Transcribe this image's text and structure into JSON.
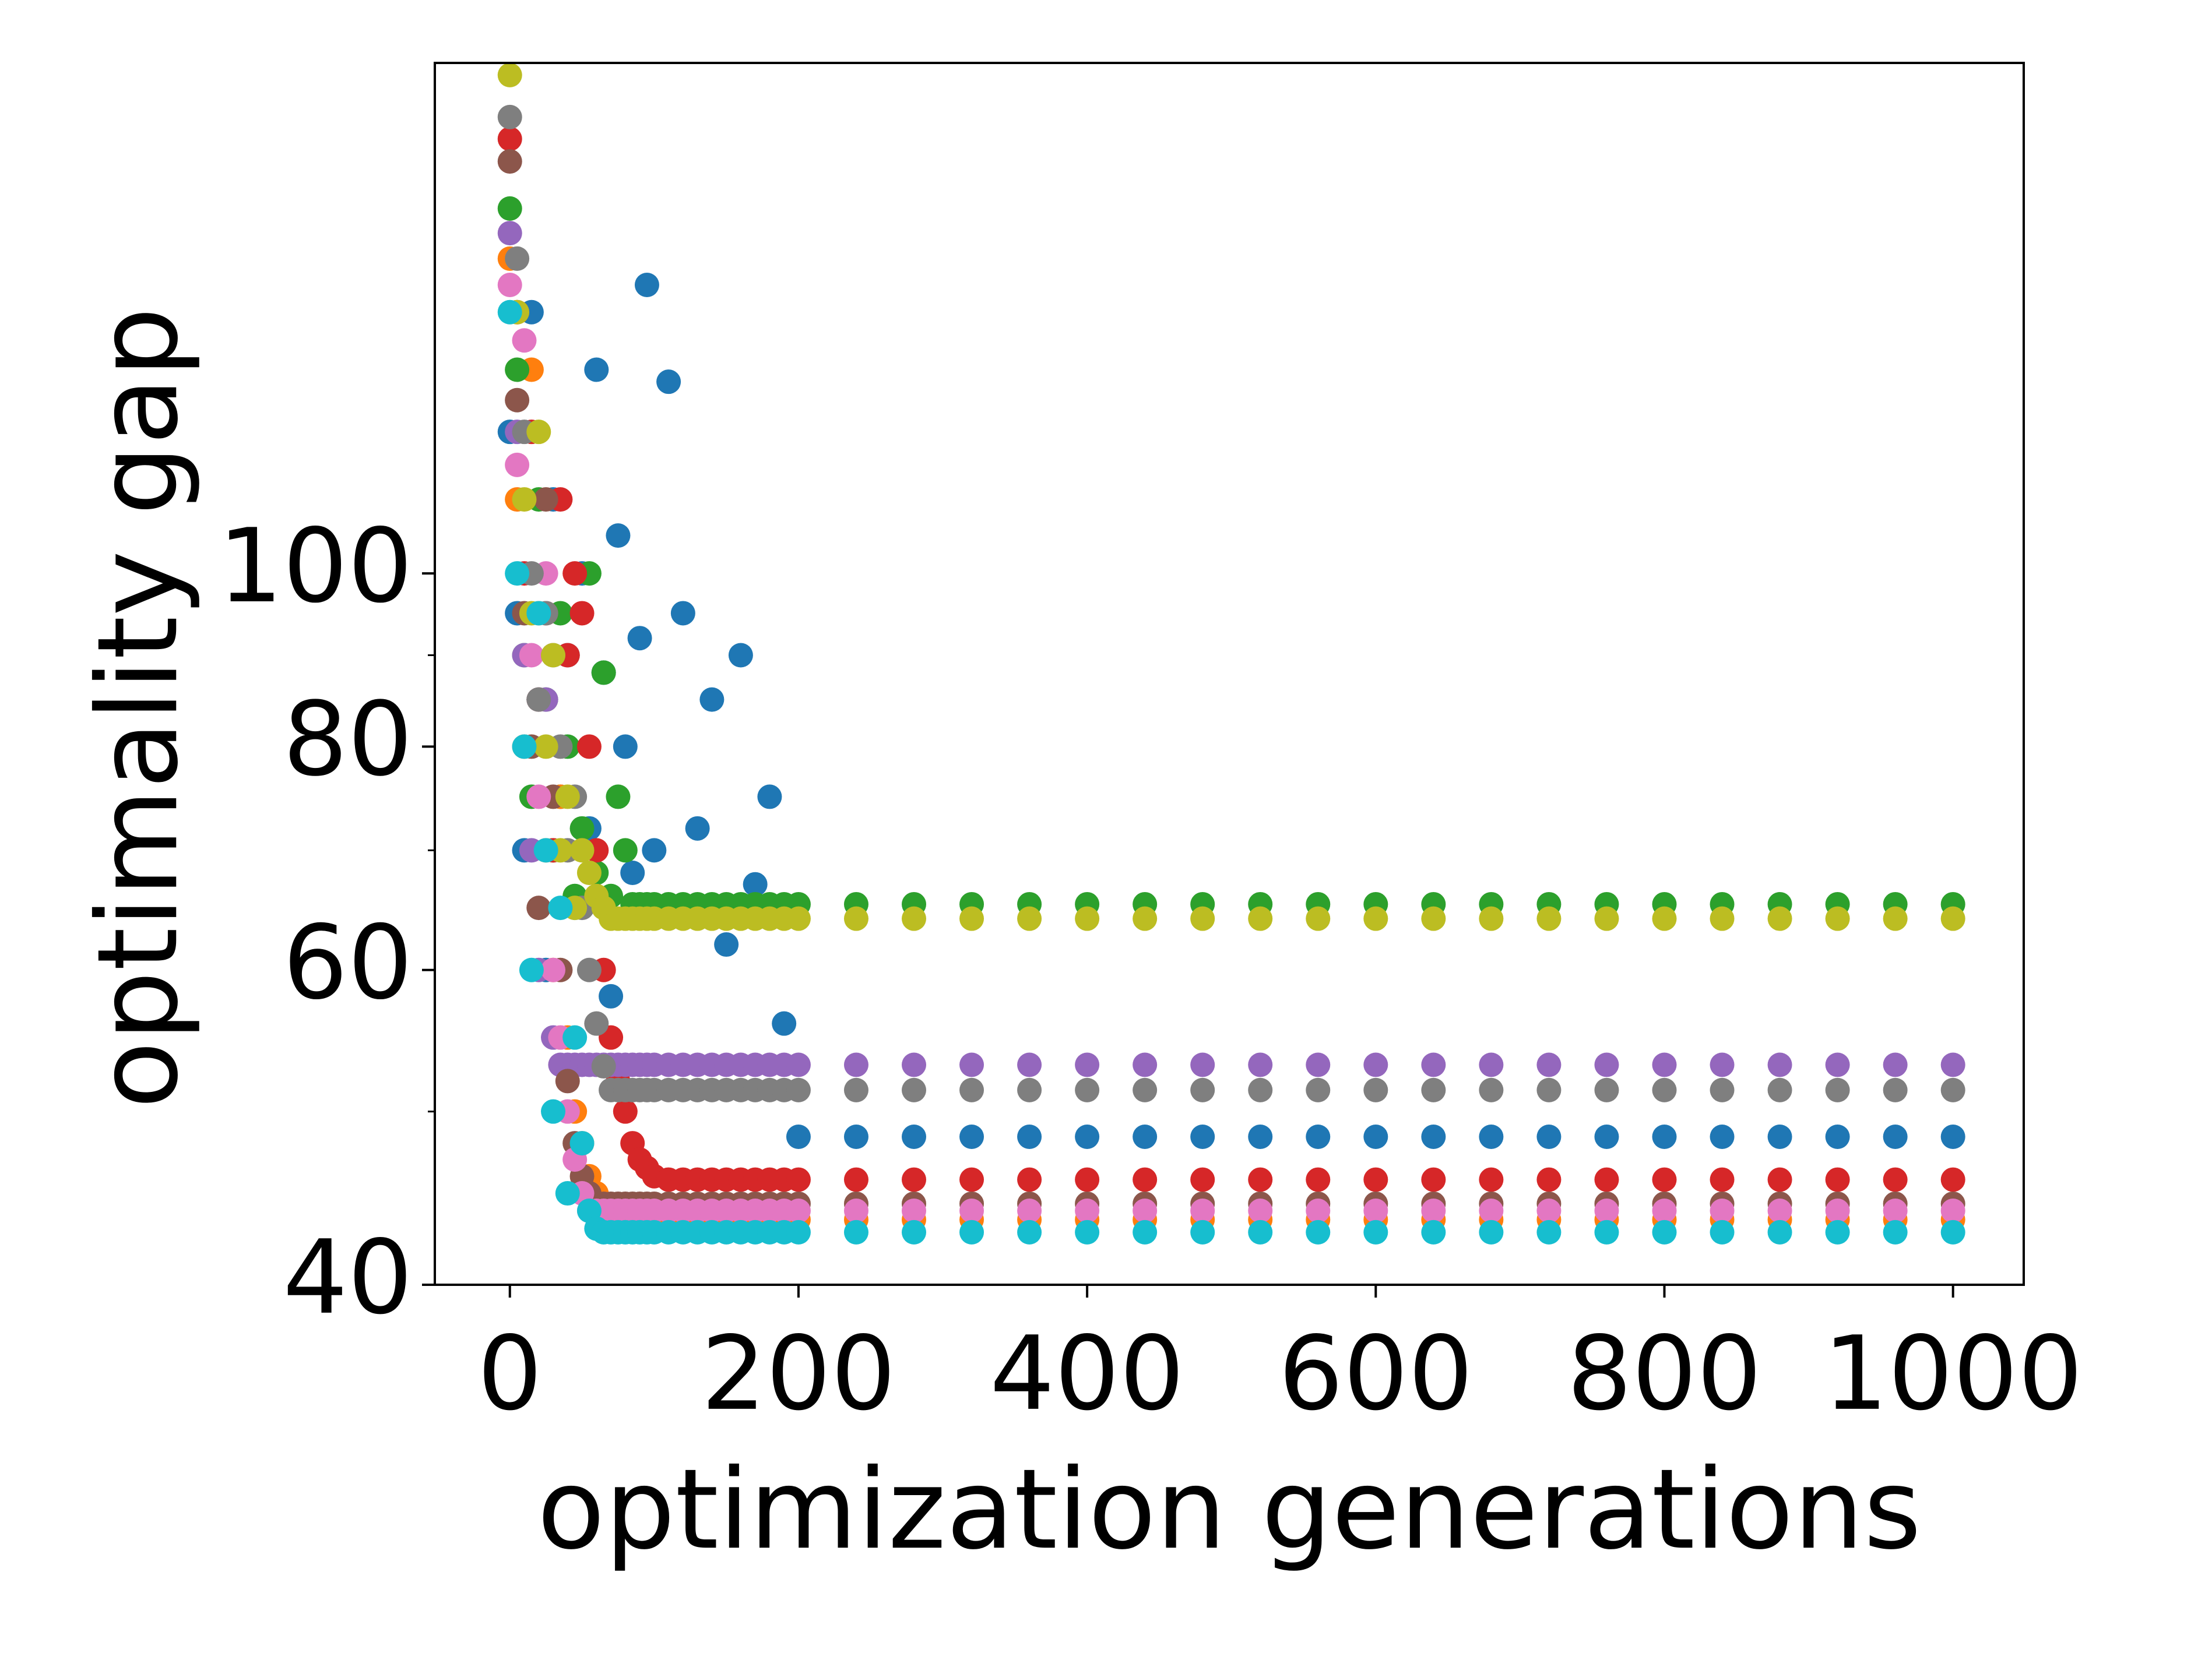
{
  "chart_data": {
    "type": "scatter",
    "x_label": "optimization generations",
    "y_label": "optimality gap",
    "yscale": "log",
    "xlim": [
      -52,
      1049
    ],
    "ylim": [
      40,
      193
    ],
    "xticks": [
      0,
      200,
      400,
      600,
      800,
      1000
    ],
    "yticks": [
      40,
      60,
      80,
      100
    ],
    "yminor_ticks": [
      50,
      70,
      90
    ],
    "x": [
      0,
      5,
      10,
      15,
      20,
      25,
      30,
      35,
      40,
      45,
      50,
      55,
      60,
      65,
      70,
      75,
      80,
      85,
      90,
      95,
      100,
      110,
      120,
      130,
      140,
      150,
      160,
      170,
      180,
      190,
      200,
      240,
      280,
      320,
      360,
      400,
      440,
      480,
      520,
      560,
      600,
      640,
      680,
      720,
      760,
      800,
      840,
      880,
      920,
      960,
      1000
    ],
    "series": [
      {
        "color": "#1f77b4",
        "values": [
          120,
          95,
          70,
          140,
          85,
          60,
          110,
          75,
          90,
          65,
          100,
          72,
          130,
          88,
          58,
          105,
          80,
          68,
          92,
          145,
          70,
          128,
          95,
          72,
          85,
          62,
          90,
          67,
          75,
          56,
          48.4,
          48.4,
          48.4,
          48.4,
          48.4,
          48.4,
          48.4,
          48.4,
          48.4,
          48.4,
          48.4,
          48.4,
          48.4,
          48.4,
          48.4,
          48.4,
          48.4,
          48.4,
          48.4,
          48.4,
          48.4
        ]
      },
      {
        "color": "#ff7f0e",
        "values": [
          150,
          110,
          80,
          130,
          95,
          70,
          60,
          75,
          55,
          50,
          48,
          46,
          45,
          44,
          43.5,
          43.5,
          43.5,
          43.5,
          43.5,
          43.5,
          43.5,
          43.5,
          43.5,
          43.5,
          43.5,
          43.5,
          43.5,
          43.5,
          43.5,
          43.5,
          43.5,
          43.5,
          43.5,
          43.5,
          43.5,
          43.5,
          43.5,
          43.5,
          43.5,
          43.5,
          43.5,
          43.5,
          43.5,
          43.5,
          43.5,
          43.5,
          43.5,
          43.5,
          43.5,
          43.5,
          43.5
        ]
      },
      {
        "color": "#2ca02c",
        "values": [
          160,
          130,
          90,
          75,
          110,
          85,
          70,
          95,
          80,
          66,
          72,
          100,
          68,
          88,
          66,
          75,
          70,
          65.3,
          65.3,
          65.3,
          65.3,
          65.3,
          65.3,
          65.3,
          65.3,
          65.3,
          65.3,
          65.3,
          65.3,
          65.3,
          65.3,
          65.3,
          65.3,
          65.3,
          65.3,
          65.3,
          65.3,
          65.3,
          65.3,
          65.3,
          65.3,
          65.3,
          65.3,
          65.3,
          65.3,
          65.3,
          65.3,
          65.3,
          65.3,
          65.3,
          65.3
        ]
      },
      {
        "color": "#d62728",
        "values": [
          175,
          140,
          100,
          120,
          85,
          95,
          70,
          110,
          90,
          100,
          95,
          80,
          70,
          60,
          55,
          52,
          50,
          48,
          47,
          46.5,
          46,
          45.8,
          45.8,
          45.8,
          45.8,
          45.8,
          45.8,
          45.8,
          45.8,
          45.8,
          45.8,
          45.8,
          45.8,
          45.8,
          45.8,
          45.8,
          45.8,
          45.8,
          45.8,
          45.8,
          45.8,
          45.8,
          45.8,
          45.8,
          45.8,
          45.8,
          45.8,
          45.8,
          45.8,
          45.8,
          45.8
        ]
      },
      {
        "color": "#9467bd",
        "values": [
          155,
          120,
          90,
          70,
          60,
          85,
          55,
          53.1,
          53.1,
          53.1,
          53.1,
          53.1,
          53.1,
          53.1,
          53.1,
          53.1,
          53.1,
          53.1,
          53.1,
          53.1,
          53.1,
          53.1,
          53.1,
          53.1,
          53.1,
          53.1,
          53.1,
          53.1,
          53.1,
          53.1,
          53.1,
          53.1,
          53.1,
          53.1,
          53.1,
          53.1,
          53.1,
          53.1,
          53.1,
          53.1,
          53.1,
          53.1,
          53.1,
          53.1,
          53.1,
          53.1,
          53.1,
          53.1,
          53.1,
          53.1,
          53.1
        ]
      },
      {
        "color": "#8c564b",
        "values": [
          170,
          125,
          95,
          80,
          65,
          110,
          75,
          60,
          52,
          48,
          46,
          45,
          44.4,
          44.4,
          44.4,
          44.4,
          44.4,
          44.4,
          44.4,
          44.4,
          44.4,
          44.4,
          44.4,
          44.4,
          44.4,
          44.4,
          44.4,
          44.4,
          44.4,
          44.4,
          44.4,
          44.4,
          44.4,
          44.4,
          44.4,
          44.4,
          44.4,
          44.4,
          44.4,
          44.4,
          44.4,
          44.4,
          44.4,
          44.4,
          44.4,
          44.4,
          44.4,
          44.4,
          44.4,
          44.4,
          44.4
        ]
      },
      {
        "color": "#e377c2",
        "values": [
          145,
          115,
          135,
          90,
          75,
          100,
          60,
          55,
          50,
          47,
          45,
          44,
          44,
          44,
          44,
          44,
          44,
          44,
          44,
          44,
          44,
          44,
          44,
          44,
          44,
          44,
          44,
          44,
          44,
          44,
          44,
          44,
          44,
          44,
          44,
          44,
          44,
          44,
          44,
          44,
          44,
          44,
          44,
          44,
          44,
          44,
          44,
          44,
          44,
          44,
          44
        ]
      },
      {
        "color": "#7f7f7f",
        "values": [
          180,
          150,
          120,
          100,
          85,
          95,
          90,
          80,
          70,
          75,
          65,
          60,
          56,
          53,
          51.4,
          51.4,
          51.4,
          51.4,
          51.4,
          51.4,
          51.4,
          51.4,
          51.4,
          51.4,
          51.4,
          51.4,
          51.4,
          51.4,
          51.4,
          51.4,
          51.4,
          51.4,
          51.4,
          51.4,
          51.4,
          51.4,
          51.4,
          51.4,
          51.4,
          51.4,
          51.4,
          51.4,
          51.4,
          51.4,
          51.4,
          51.4,
          51.4,
          51.4,
          51.4,
          51.4,
          51.4
        ]
      },
      {
        "color": "#bcbd22",
        "values": [
          190,
          140,
          110,
          95,
          120,
          80,
          90,
          70,
          75,
          65,
          70,
          68,
          66,
          65,
          64.1,
          64.1,
          64.1,
          64.1,
          64.1,
          64.1,
          64.1,
          64.1,
          64.1,
          64.1,
          64.1,
          64.1,
          64.1,
          64.1,
          64.1,
          64.1,
          64.1,
          64.1,
          64.1,
          64.1,
          64.1,
          64.1,
          64.1,
          64.1,
          64.1,
          64.1,
          64.1,
          64.1,
          64.1,
          64.1,
          64.1,
          64.1,
          64.1,
          64.1,
          64.1,
          64.1,
          64.1
        ]
      },
      {
        "color": "#17becf",
        "values": [
          140,
          100,
          80,
          60,
          95,
          70,
          50,
          65,
          45,
          55,
          48,
          44,
          43,
          42.8,
          42.8,
          42.8,
          42.8,
          42.8,
          42.8,
          42.8,
          42.8,
          42.8,
          42.8,
          42.8,
          42.8,
          42.8,
          42.8,
          42.8,
          42.8,
          42.8,
          42.8,
          42.8,
          42.8,
          42.8,
          42.8,
          42.8,
          42.8,
          42.8,
          42.8,
          42.8,
          42.8,
          42.8,
          42.8,
          42.8,
          42.8,
          42.8,
          42.8,
          42.8,
          42.8,
          42.8,
          42.8
        ]
      }
    ]
  }
}
